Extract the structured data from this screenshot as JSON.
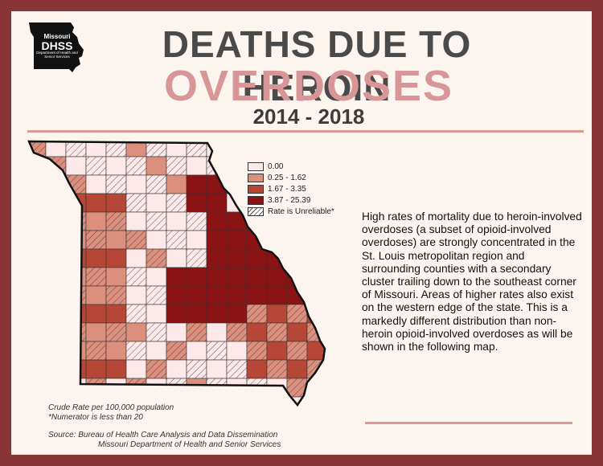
{
  "header": {
    "logo_lines": [
      "Missouri",
      "DHSS",
      "Department of Health and Senior Services"
    ],
    "title_line1": "DEATHS DUE TO HEROIN",
    "title_line2": "OVERDOSES",
    "years": "2014 - 2018"
  },
  "legend": {
    "items": [
      {
        "label": "0.00",
        "color": "#fde8ea"
      },
      {
        "label": "0.25 - 1.62",
        "color": "#dc8f7d"
      },
      {
        "label": "1.67 - 3.35",
        "color": "#b64636"
      },
      {
        "label": "3.87 - 25.39",
        "color": "#8b1313"
      },
      {
        "label": "Rate is Unreliable*",
        "color": "hatched"
      }
    ]
  },
  "description": "High rates of mortality due to heroin-involved overdoses (a subset of opioid-involved overdoses) are strongly concentrated in the St. Louis metropolitan region and surrounding counties with a secondary cluster trailing down to the southeast corner of Missouri. Areas of higher rates also exist on the western edge of the state. This is a markedly different distribution than non-heroin opioid-involved overdoses as will be shown in the following map.",
  "notes": {
    "rate_note": "Crude Rate per 100,000 population",
    "numerator_note": "*Numerator is less than 20",
    "source_line1": "Source: Bureau of Health Care Analysis and Data Dissemination",
    "source_line2": "Missouri Department of Health and Senior Services"
  },
  "colors": {
    "frame": "#8a3535",
    "background": "#fbf4ef",
    "title_dark": "#4a4a4a",
    "title_pink": "#d99696",
    "class0": "#fde8ea",
    "class1": "#dc8f7d",
    "class2": "#b64636",
    "class3": "#8b1313"
  }
}
